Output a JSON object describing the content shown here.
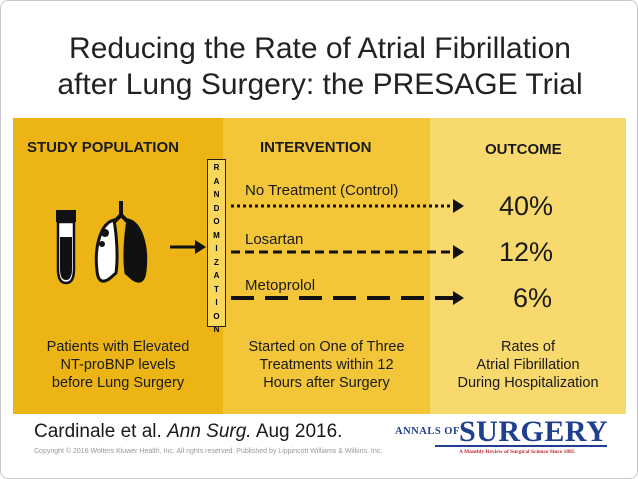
{
  "title_line1": "Reducing the Rate of Atrial Fibrillation",
  "title_line2": "after Lung Surgery: the PRESAGE Trial",
  "headers": {
    "population": "STUDY POPULATION",
    "intervention": "INTERVENTION",
    "outcome": "OUTCOME"
  },
  "randomization_letters": [
    "R",
    "A",
    "N",
    "D",
    "O",
    "M",
    "I",
    "Z",
    "A",
    "T",
    "I",
    "O",
    "N"
  ],
  "treatments": [
    {
      "label": "No Treatment (Control)",
      "outcome": "40%"
    },
    {
      "label": "Losartan",
      "outcome": "12%"
    },
    {
      "label": "Metoprolol",
      "outcome": "6%"
    }
  ],
  "footers": {
    "population": [
      "Patients with Elevated",
      "NT-proBNP levels",
      "before Lung Surgery"
    ],
    "intervention": [
      "Started on One of Three",
      "Treatments within 12",
      "Hours after Surgery"
    ],
    "outcome": [
      "Rates of",
      "Atrial Fibrillation",
      "During Hospitalization"
    ]
  },
  "citation": {
    "authors": "Cardinale et al.",
    "journal": "Ann Surg.",
    "date": "Aug 2016."
  },
  "copyright": "Copyright © 2016 Wolters Kluwer Health, Inc. All rights reserved. Published by Lippincott Williams & Wilkins, Inc.",
  "logo": {
    "annals": "ANNALS OF",
    "surgery": "SURGERY",
    "tagline": "A Monthly Review of Surgical Science Since 1885"
  },
  "colors": {
    "panel1": "#ecb515",
    "panel2": "#f3c63a",
    "panel3": "#f8d96e",
    "logo_blue": "#1f3f8f",
    "logo_red": "#c0282d"
  }
}
